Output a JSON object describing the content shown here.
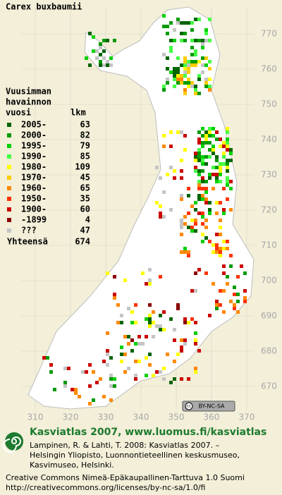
{
  "title": "Carex buxbaumii",
  "legend": {
    "heading": [
      "Vuusimman",
      "havainnon",
      "vuosi"
    ],
    "count_heading": "lkm",
    "items": [
      {
        "label": "2005-",
        "count": 63,
        "color": "#006400"
      },
      {
        "label": "2000-",
        "count": 82,
        "color": "#009a00"
      },
      {
        "label": "1995-",
        "count": 79,
        "color": "#00d000"
      },
      {
        "label": "1990-",
        "count": 85,
        "color": "#44ff44"
      },
      {
        "label": "1980-",
        "count": 109,
        "color": "#ffff00"
      },
      {
        "label": "1970-",
        "count": 45,
        "color": "#ffcc00"
      },
      {
        "label": "1960-",
        "count": 65,
        "color": "#ff8800"
      },
      {
        "label": "1950-",
        "count": 35,
        "color": "#ff3300"
      },
      {
        "label": "1900-",
        "count": 60,
        "color": "#cc0000"
      },
      {
        "label": "-1899",
        "count": 4,
        "color": "#8b0000"
      },
      {
        "label": "???",
        "count": 47,
        "color": "#c4c4c4"
      }
    ],
    "total_label": "Yhteensä",
    "total": 674
  },
  "grid": {
    "northing": [
      770,
      760,
      750,
      740,
      730,
      720,
      710,
      700,
      690,
      680,
      670
    ],
    "easting": [
      310,
      320,
      330,
      340,
      350,
      360,
      370
    ]
  },
  "badge": "BY-NC-SA",
  "footer": {
    "headline": "Kasviatlas 2007, www.luomus.fi/kasviatlas",
    "citation": [
      "Lampinen, R. & Lahti, T. 2008: Kasviatlas 2007. –",
      "Helsingin Yliopisto, Luonnontieteellinen keskusmuseo,",
      "Kasvimuseo, Helsinki."
    ],
    "license": [
      "Creative Commons Nimeä-Epäkaupallinen-Tarttuva 1.0 Suomi",
      "http://creativecommons.org/licenses/by-nc-sa/1.0/fi"
    ]
  }
}
